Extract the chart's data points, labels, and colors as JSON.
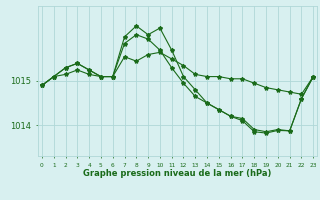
{
  "x": [
    0,
    1,
    2,
    3,
    4,
    5,
    6,
    7,
    8,
    9,
    10,
    11,
    12,
    13,
    14,
    15,
    16,
    17,
    18,
    19,
    20,
    21,
    22,
    23
  ],
  "line1": [
    1014.9,
    1015.1,
    1015.15,
    1015.25,
    1015.15,
    1015.1,
    1015.1,
    1015.55,
    1015.45,
    1015.6,
    1015.65,
    1015.5,
    1015.35,
    1015.15,
    1015.1,
    1015.1,
    1015.05,
    1015.05,
    1014.95,
    1014.85,
    1014.8,
    1014.75,
    1014.7,
    1015.1
  ],
  "line2": [
    1014.9,
    1015.1,
    1015.3,
    1015.4,
    1015.25,
    1015.1,
    1015.1,
    1015.85,
    1016.05,
    1015.95,
    1015.7,
    1015.3,
    1014.95,
    1014.65,
    1014.5,
    1014.35,
    1014.2,
    1014.1,
    1013.85,
    1013.82,
    1013.88,
    1013.87,
    1014.6,
    1015.1
  ],
  "line3": [
    1014.9,
    1015.1,
    1015.3,
    1015.4,
    1015.25,
    1015.1,
    1015.1,
    1016.0,
    1016.25,
    1016.05,
    1016.2,
    1015.7,
    1015.1,
    1014.8,
    1014.5,
    1014.35,
    1014.2,
    1014.15,
    1013.9,
    1013.85,
    1013.9,
    1013.87,
    1014.6,
    1015.1
  ],
  "line_color": "#1a6b1a",
  "bg_color": "#d8f0f0",
  "grid_color": "#b0d8d8",
  "xlabel": "Graphe pression niveau de la mer (hPa)",
  "xlabel_color": "#1a6b1a",
  "tick_color": "#1a6b1a",
  "yticks": [
    1014,
    1015
  ],
  "ylim": [
    1013.3,
    1016.7
  ],
  "xlim": [
    -0.3,
    23.3
  ],
  "figwidth": 3.2,
  "figheight": 2.0,
  "dpi": 100
}
